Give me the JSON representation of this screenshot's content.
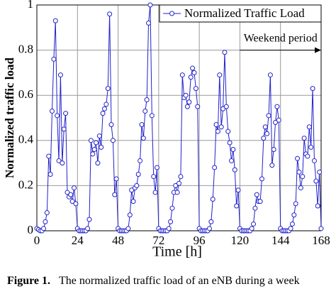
{
  "chart_data": {
    "type": "line",
    "xlabel": "Time [h]",
    "ylabel": "Normalized traffic load",
    "x": [
      0,
      1,
      2,
      3,
      4,
      5,
      6,
      7,
      8,
      9,
      10,
      11,
      12,
      13,
      14,
      15,
      16,
      17,
      18,
      19,
      20,
      21,
      22,
      23,
      24,
      25,
      26,
      27,
      28,
      29,
      30,
      31,
      32,
      33,
      34,
      35,
      36,
      37,
      38,
      39,
      40,
      41,
      42,
      43,
      44,
      45,
      46,
      47,
      48,
      49,
      50,
      51,
      52,
      53,
      54,
      55,
      56,
      57,
      58,
      59,
      60,
      61,
      62,
      63,
      64,
      65,
      66,
      67,
      68,
      69,
      70,
      71,
      72,
      73,
      74,
      75,
      76,
      77,
      78,
      79,
      80,
      81,
      82,
      83,
      84,
      85,
      86,
      87,
      88,
      89,
      90,
      91,
      92,
      93,
      94,
      95,
      96,
      97,
      98,
      99,
      100,
      101,
      102,
      103,
      104,
      105,
      106,
      107,
      108,
      109,
      110,
      111,
      112,
      113,
      114,
      115,
      116,
      117,
      118,
      119,
      120,
      121,
      122,
      123,
      124,
      125,
      126,
      127,
      128,
      129,
      130,
      131,
      132,
      133,
      134,
      135,
      136,
      137,
      138,
      139,
      140,
      141,
      142,
      143,
      144,
      145,
      146,
      147,
      148,
      149,
      150,
      151,
      152,
      153,
      154,
      155,
      156,
      157,
      158,
      159,
      160,
      161,
      162,
      163,
      164,
      165,
      166,
      167,
      168
    ],
    "series": [
      {
        "name": "Normalized Traffic Load",
        "color": "#2222cc",
        "values": [
          0.01,
          0.005,
          0,
          0,
          0.01,
          0.04,
          0.08,
          0.33,
          0.25,
          0.53,
          0.76,
          0.93,
          0.51,
          0.31,
          0.69,
          0.3,
          0.45,
          0.52,
          0.17,
          0.15,
          0.16,
          0.13,
          0.19,
          0.12,
          0.01,
          0,
          0,
          0,
          0,
          0,
          0.01,
          0.05,
          0.4,
          0.34,
          0.36,
          0.39,
          0.3,
          0.42,
          0.37,
          0.52,
          0.54,
          0.56,
          0.63,
          0.96,
          0.47,
          0.4,
          0.16,
          0.23,
          0.01,
          0,
          0,
          0,
          0,
          0,
          0.01,
          0.07,
          0.18,
          0.13,
          0.19,
          0.2,
          0.25,
          0.31,
          0.47,
          0.41,
          0.53,
          0.58,
          0.92,
          1.0,
          0.51,
          0.24,
          0.17,
          0.28,
          0.01,
          0,
          0,
          0,
          0,
          0,
          0.01,
          0.04,
          0.1,
          0.17,
          0.2,
          0.17,
          0.21,
          0.24,
          0.69,
          0.59,
          0.6,
          0.55,
          0.57,
          0.68,
          0.72,
          0.7,
          0.63,
          0.55,
          0.01,
          0,
          0,
          0,
          0,
          0,
          0.01,
          0.04,
          0.14,
          0.28,
          0.47,
          0.44,
          0.69,
          0.46,
          0.54,
          0.79,
          0.55,
          0.44,
          0.39,
          0.31,
          0.36,
          0.27,
          0.11,
          0.18,
          0.01,
          0,
          0,
          0,
          0,
          0,
          0,
          0.01,
          0.03,
          0.1,
          0.16,
          0.13,
          0.13,
          0.23,
          0.41,
          0.46,
          0.43,
          0.51,
          0.69,
          0.29,
          0.36,
          0.48,
          0.55,
          0.49,
          0.01,
          0,
          0,
          0,
          0,
          0,
          0.01,
          0.03,
          0.07,
          0.12,
          0.32,
          0.26,
          0.19,
          0.24,
          0.41,
          0.34,
          0.33,
          0.46,
          0.37,
          0.63,
          0.31,
          0.22,
          0.11,
          0.26,
          0.01
        ]
      }
    ],
    "xlim": [
      0,
      168
    ],
    "xticks": [
      0,
      24,
      48,
      72,
      96,
      120,
      144,
      168
    ],
    "ylim": [
      0,
      1
    ],
    "yticks": [
      0,
      0.2,
      0.4,
      0.6,
      0.8,
      1
    ],
    "grid": true,
    "legend": "upper right",
    "annotation": {
      "text": "Weekend period",
      "x": [
        120,
        168
      ],
      "y": 0.8
    }
  },
  "caption": {
    "label": "Figure 1.",
    "text": "The normalized traffic load of an eNB during a week"
  }
}
